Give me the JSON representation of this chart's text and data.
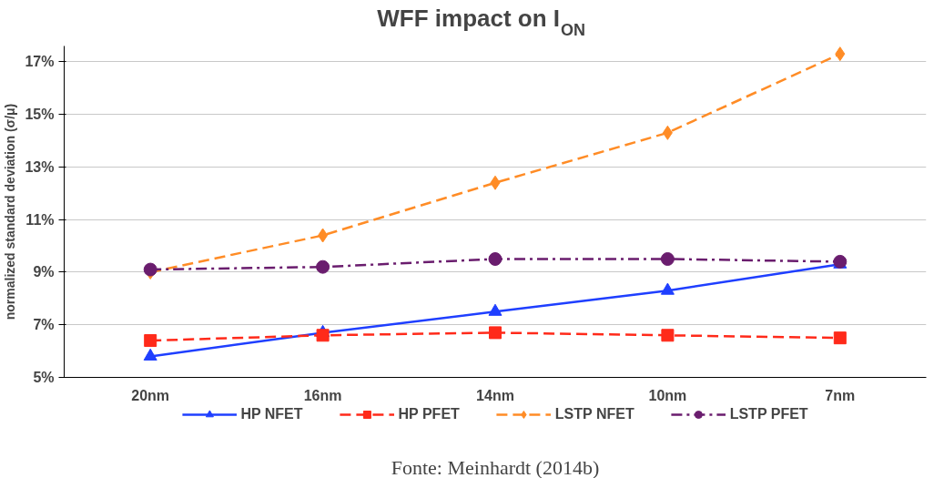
{
  "chart_data": {
    "type": "line",
    "title": "WFF impact on I$_{ON}$",
    "ylabel": "normalized standard deviation (σ/μ)",
    "categories": [
      "20nm",
      "16nm",
      "14nm",
      "10nm",
      "7nm"
    ],
    "series": [
      {
        "name": "HP NFET",
        "color": "#1f3fff",
        "marker": "triangle",
        "line_style": "solid",
        "values": [
          5.8,
          6.7,
          7.5,
          8.3,
          9.3
        ]
      },
      {
        "name": "HP PFET",
        "color": "#ff2a1a",
        "marker": "square",
        "line_style": "dashed",
        "values": [
          6.4,
          6.6,
          6.7,
          6.6,
          6.5
        ]
      },
      {
        "name": "LSTP NFET",
        "color": "#ff8c26",
        "marker": "diamond",
        "line_style": "dashed",
        "values": [
          9.0,
          10.4,
          12.4,
          14.3,
          17.3
        ]
      },
      {
        "name": "LSTP PFET",
        "color": "#6a1d6e",
        "marker": "circle",
        "line_style": "dashdot",
        "values": [
          9.1,
          9.2,
          9.5,
          9.5,
          9.4
        ]
      }
    ],
    "ylim": [
      5,
      17.6
    ],
    "yticks": [
      {
        "value": 5,
        "label": "5%"
      },
      {
        "value": 7,
        "label": "7%"
      },
      {
        "value": 9,
        "label": "9%"
      },
      {
        "value": 11,
        "label": "11%"
      },
      {
        "value": 13,
        "label": "13%"
      },
      {
        "value": 15,
        "label": "15%"
      },
      {
        "value": 17,
        "label": "17%"
      }
    ],
    "grid": "y",
    "legend": "bottom",
    "annotations": [
      "Fonte: Meinhardt (2014b)"
    ]
  }
}
